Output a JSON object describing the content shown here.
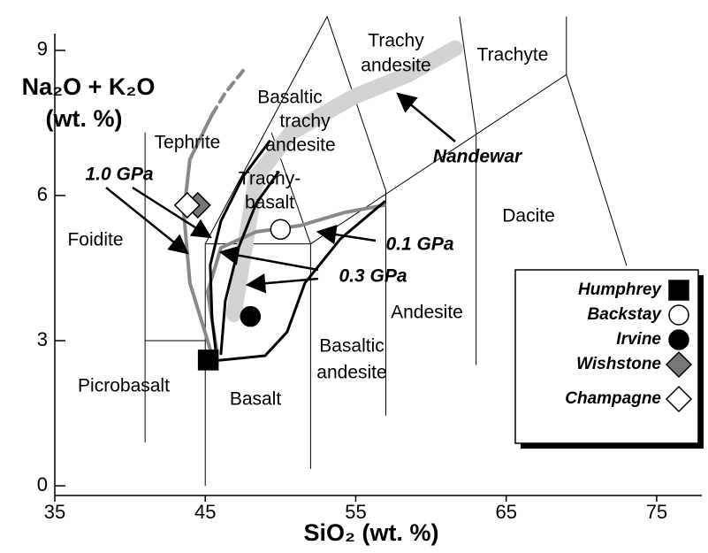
{
  "chart_data": {
    "type": "scatter",
    "y_label": [
      "Na₂O + K₂O",
      "(wt. %)"
    ],
    "x_label": "SiO₂ (wt. %)",
    "xlim": [
      35,
      78
    ],
    "ylim": [
      -0.2,
      9.2
    ],
    "xticks": [
      35,
      45,
      55,
      65,
      75
    ],
    "yticks": [
      0,
      3,
      6,
      9
    ],
    "series": [
      {
        "name": "Humphrey",
        "marker": "square",
        "color": "#000000",
        "x": [
          45.2
        ],
        "values": [
          2.6
        ]
      },
      {
        "name": "Backstay",
        "marker": "circle",
        "color": "#ffffff",
        "x": [
          50.0
        ],
        "values": [
          5.3
        ]
      },
      {
        "name": "Irvine",
        "marker": "circle",
        "color": "#000000",
        "x": [
          48.0
        ],
        "values": [
          3.5
        ]
      },
      {
        "name": "Wishstone",
        "marker": "diamond",
        "color": "#777777",
        "x": [
          44.5
        ],
        "values": [
          5.8
        ]
      },
      {
        "name": "Champagne",
        "marker": "diamond",
        "color": "#ffffff",
        "x": [
          43.8
        ],
        "values": [
          5.8
        ]
      }
    ],
    "boundaries": [
      {
        "x": [
          41,
          41
        ],
        "y": [
          0.9,
          7.3
        ]
      },
      {
        "x": [
          41,
          45
        ],
        "y": [
          3,
          3
        ]
      },
      {
        "x": [
          45,
          45,
          52
        ],
        "y": [
          0,
          5,
          5
        ]
      },
      {
        "x": [
          45,
          53.1,
          57
        ],
        "y": [
          5,
          9.7,
          6.1
        ]
      },
      {
        "x": [
          52,
          52
        ],
        "y": [
          0.35,
          5
        ]
      },
      {
        "x": [
          57,
          57
        ],
        "y": [
          1.45,
          6.1
        ]
      },
      {
        "x": [
          52,
          69
        ],
        "y": [
          5,
          8.5
        ]
      },
      {
        "x": [
          61.9,
          63,
          63
        ],
        "y": [
          9.7,
          7.3,
          2.5
        ]
      },
      {
        "x": [
          69,
          69
        ],
        "y": [
          8.5,
          9.7
        ]
      },
      {
        "x": [
          69,
          73
        ],
        "y": [
          8.5,
          4.55
        ]
      },
      {
        "x": [
          49.4,
          52
        ],
        "y": [
          7.3,
          5
        ]
      }
    ],
    "curves": [
      {
        "color": "#d3d3d3",
        "width": 18,
        "x": [
          46.9,
          48.4,
          50.7,
          54.8,
          58.4,
          61.6
        ],
        "y": [
          3.55,
          6.39,
          7.3,
          8.03,
          8.49,
          9.04
        ]
      },
      {
        "color": "#888888",
        "width": 4,
        "x": [
          45.33,
          43.98,
          43.57,
          43.98,
          45.45
        ],
        "y": [
          2.82,
          4.19,
          5.65,
          6.75,
          7.67
        ]
      },
      {
        "color": "#888888",
        "width": 4,
        "dashed": true,
        "x": [
          45.45,
          46.33,
          47.51
        ],
        "y": [
          7.67,
          8.12,
          8.58
        ]
      },
      {
        "color": "#888888",
        "width": 4,
        "x": [
          45.75,
          45.16,
          46.04,
          48.39,
          51.32,
          54.26,
          56.9
        ],
        "y": [
          2.82,
          4.01,
          4.92,
          5.25,
          5.38,
          5.65,
          5.8
        ]
      },
      {
        "color": "#000000",
        "width": 3,
        "x": [
          45.45,
          48.98,
          50.44,
          51.62,
          53.97,
          56.9
        ],
        "y": [
          2.58,
          2.69,
          3.18,
          4.19,
          5.1,
          5.87
        ]
      },
      {
        "color": "#000000",
        "width": 3,
        "x": [
          45.75,
          45.45,
          45.33,
          46.04,
          47.51,
          49.27
        ],
        "y": [
          2.64,
          3.46,
          4.56,
          5.47,
          6.39,
          7.12
        ]
      },
      {
        "color": "#000000",
        "width": 3,
        "x": [
          46.04,
          46.33,
          47.21,
          48.39,
          49.86
        ],
        "y": [
          2.73,
          3.82,
          4.92,
          5.84,
          6.48
        ]
      }
    ],
    "fields": {
      "foidite": [
        "Foidite"
      ],
      "tephrite": [
        "Tephrite"
      ],
      "picrobasalt": [
        "Picrobasalt"
      ],
      "basalt": [
        "Basalt"
      ],
      "basaltic_andesite": [
        "Basaltic",
        "andesite"
      ],
      "andesite": [
        "Andesite"
      ],
      "dacite": [
        "Dacite"
      ],
      "trachyte": [
        "Trachyte"
      ],
      "trachy_andesite": [
        "Trachy",
        "andesite"
      ],
      "basaltic_trachy_andesite": [
        "Basaltic",
        "trachy",
        "andesite"
      ],
      "trachybasalt": [
        "Trachy-",
        "basalt"
      ]
    },
    "annotations": {
      "p10": "1.0 GPa",
      "p01": "0.1 GPa",
      "p03": "0.3 GPa",
      "nandewar": "Nandewar"
    }
  }
}
